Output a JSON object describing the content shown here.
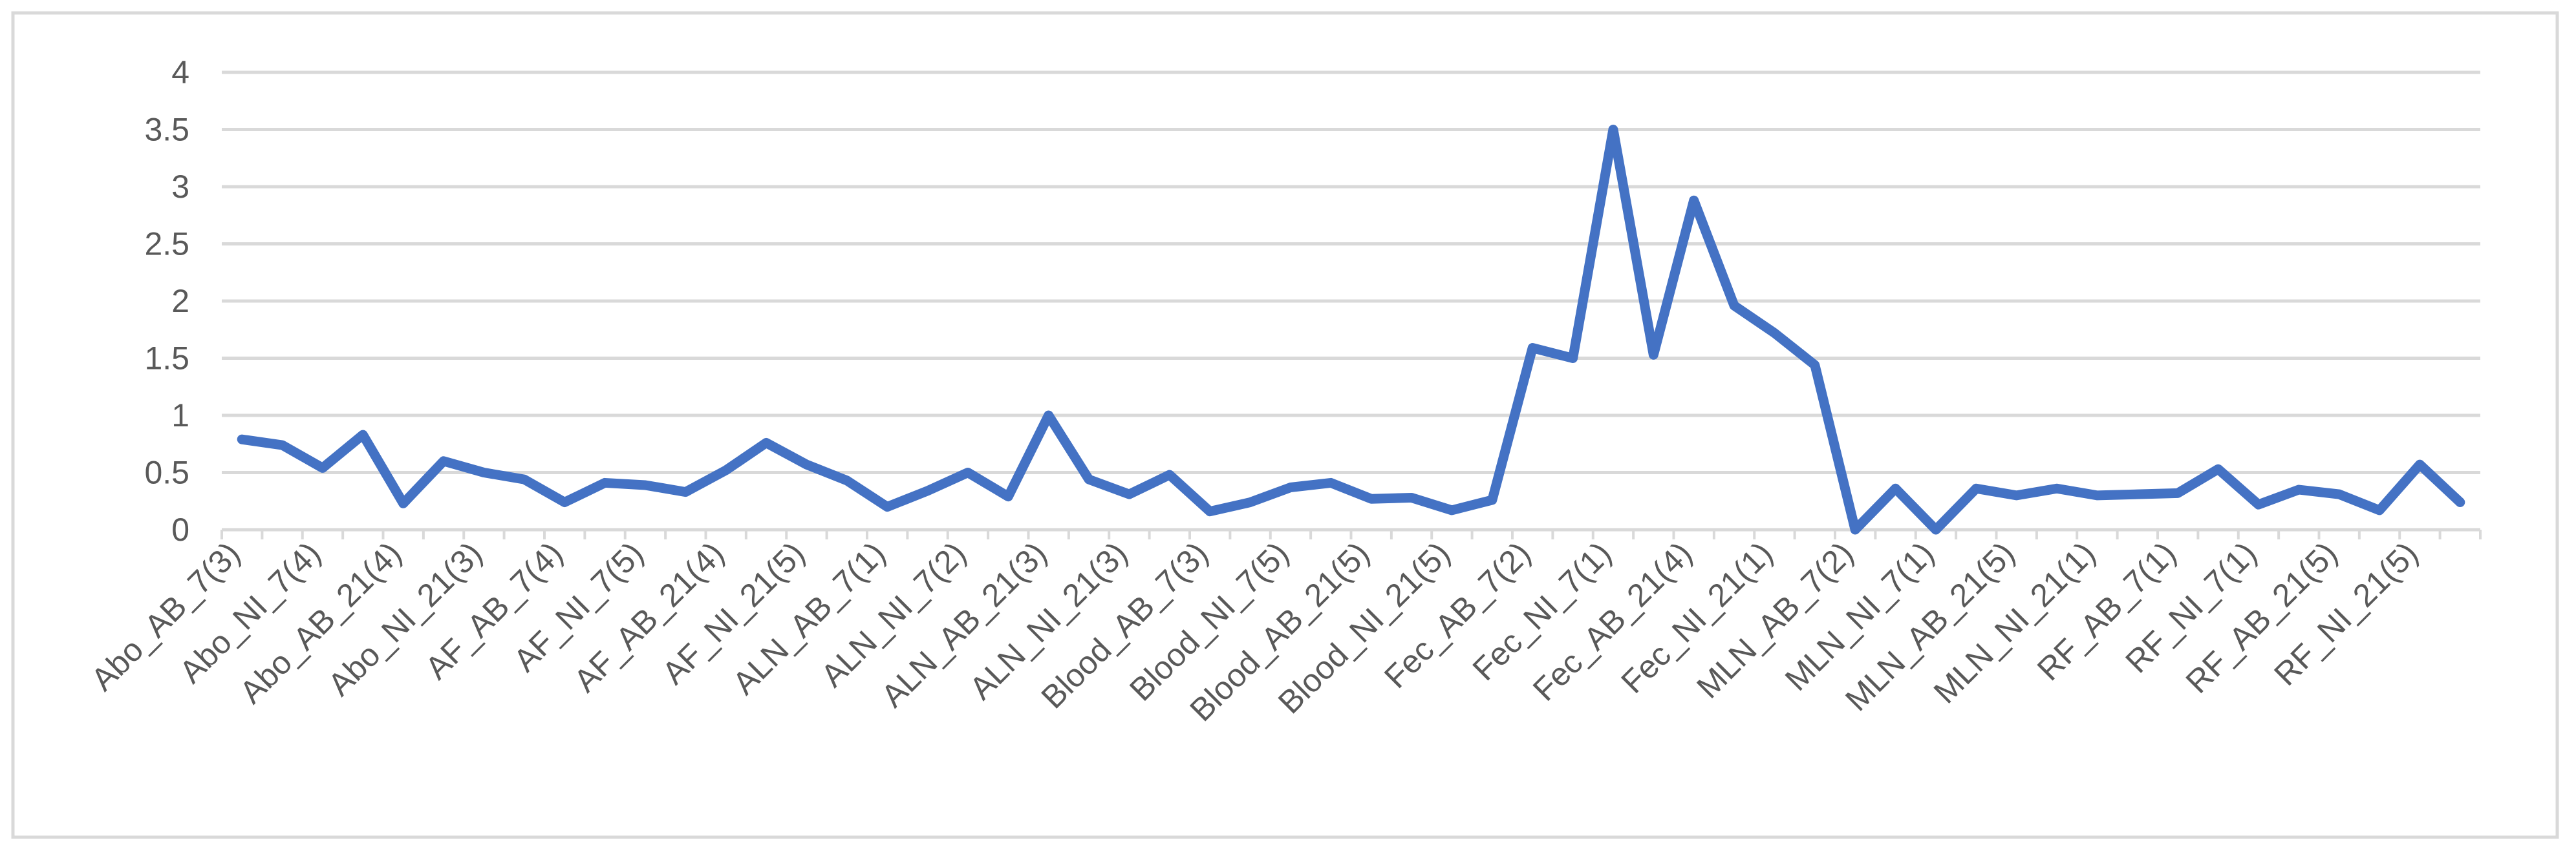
{
  "chart_data": {
    "type": "line",
    "categories": [
      "Abo_AB_7(3)",
      null,
      "Abo_NI_7(4)",
      null,
      "Abo_AB_21(4)",
      null,
      "Abo_NI_21(3)",
      null,
      "AF_AB_7(4)",
      null,
      "AF_NI_7(5)",
      null,
      "AF_AB_21(4)",
      null,
      "AF_NI_21(5)",
      null,
      "ALN_AB_7(1)",
      null,
      "ALN_NI_7(2)",
      null,
      "ALN_AB_21(3)",
      null,
      "ALN_NI_21(3)",
      null,
      "Blood_AB_7(3)",
      null,
      "Blood_NI_7(5)",
      null,
      "Blood_AB_21(5)",
      null,
      "Blood_NI_21(5)",
      null,
      "Fec_AB_7(2)",
      null,
      "Fec_NI_7(1)",
      null,
      "Fec_AB_21(4)",
      null,
      "Fec_NI_21(1)",
      null,
      "MLN_AB_7(2)",
      null,
      "MLN_NI_7(1)",
      null,
      "MLN_AB_21(5)",
      null,
      "MLN_NI_21(1)",
      null,
      "RF_AB_7(1)",
      null,
      "RF_NI_7(1)",
      null,
      "RF_AB_21(5)",
      null,
      "RF_NI_21(5)",
      null
    ],
    "values": [
      0.79,
      0.74,
      0.54,
      0.83,
      0.23,
      0.6,
      0.5,
      0.44,
      0.24,
      0.41,
      0.39,
      0.33,
      0.52,
      0.76,
      0.57,
      0.43,
      0.2,
      0.34,
      0.5,
      0.29,
      1.0,
      0.44,
      0.31,
      0.48,
      0.16,
      0.24,
      0.37,
      0.41,
      0.27,
      0.28,
      0.17,
      0.26,
      1.59,
      1.5,
      3.5,
      1.53,
      2.88,
      1.96,
      1.72,
      1.44,
      0,
      0.36,
      0,
      0.36,
      0.3,
      0.36,
      0.3,
      0.31,
      0.32,
      0.53,
      0.22,
      0.35,
      0.31,
      0.17,
      0.57,
      0.24
    ],
    "color": "#4472c4",
    "ylim": [
      0,
      4
    ],
    "yticks": [
      0,
      0.5,
      1,
      1.5,
      2,
      2.5,
      3,
      3.5,
      4
    ],
    "grid": true
  }
}
